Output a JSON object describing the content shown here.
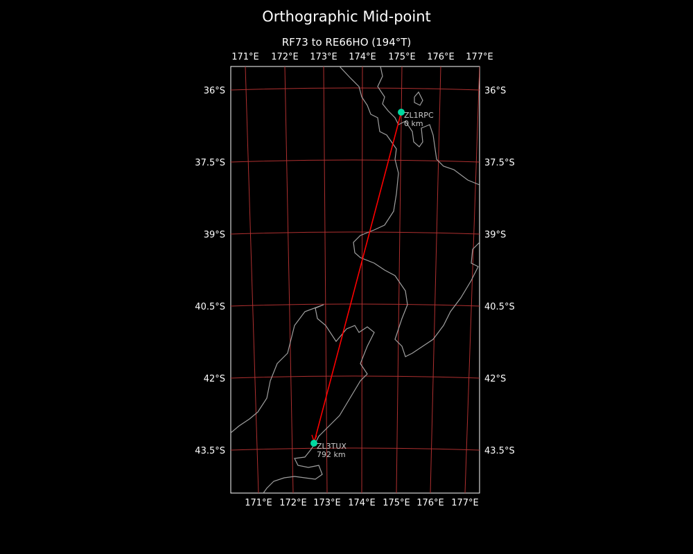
{
  "title": "Orthographic Mid-point",
  "subtitle": "RF73 to RE66HO (194°T)",
  "lon_labels": [
    "171°E",
    "172°E",
    "173°E",
    "174°E",
    "175°E",
    "176°E",
    "177°E"
  ],
  "lat_labels": [
    "36°S",
    "37.5°S",
    "39°S",
    "40.5°S",
    "42°S",
    "43.5°S"
  ],
  "stations": [
    {
      "call": "ZL1RPC",
      "dist": "0 km"
    },
    {
      "call": "ZL3TUX",
      "dist": "792 km"
    }
  ],
  "colors": {
    "path": "#ff0000",
    "station": "#00d8a0",
    "grid": "#b03030",
    "coast": "#a0a0a0"
  }
}
